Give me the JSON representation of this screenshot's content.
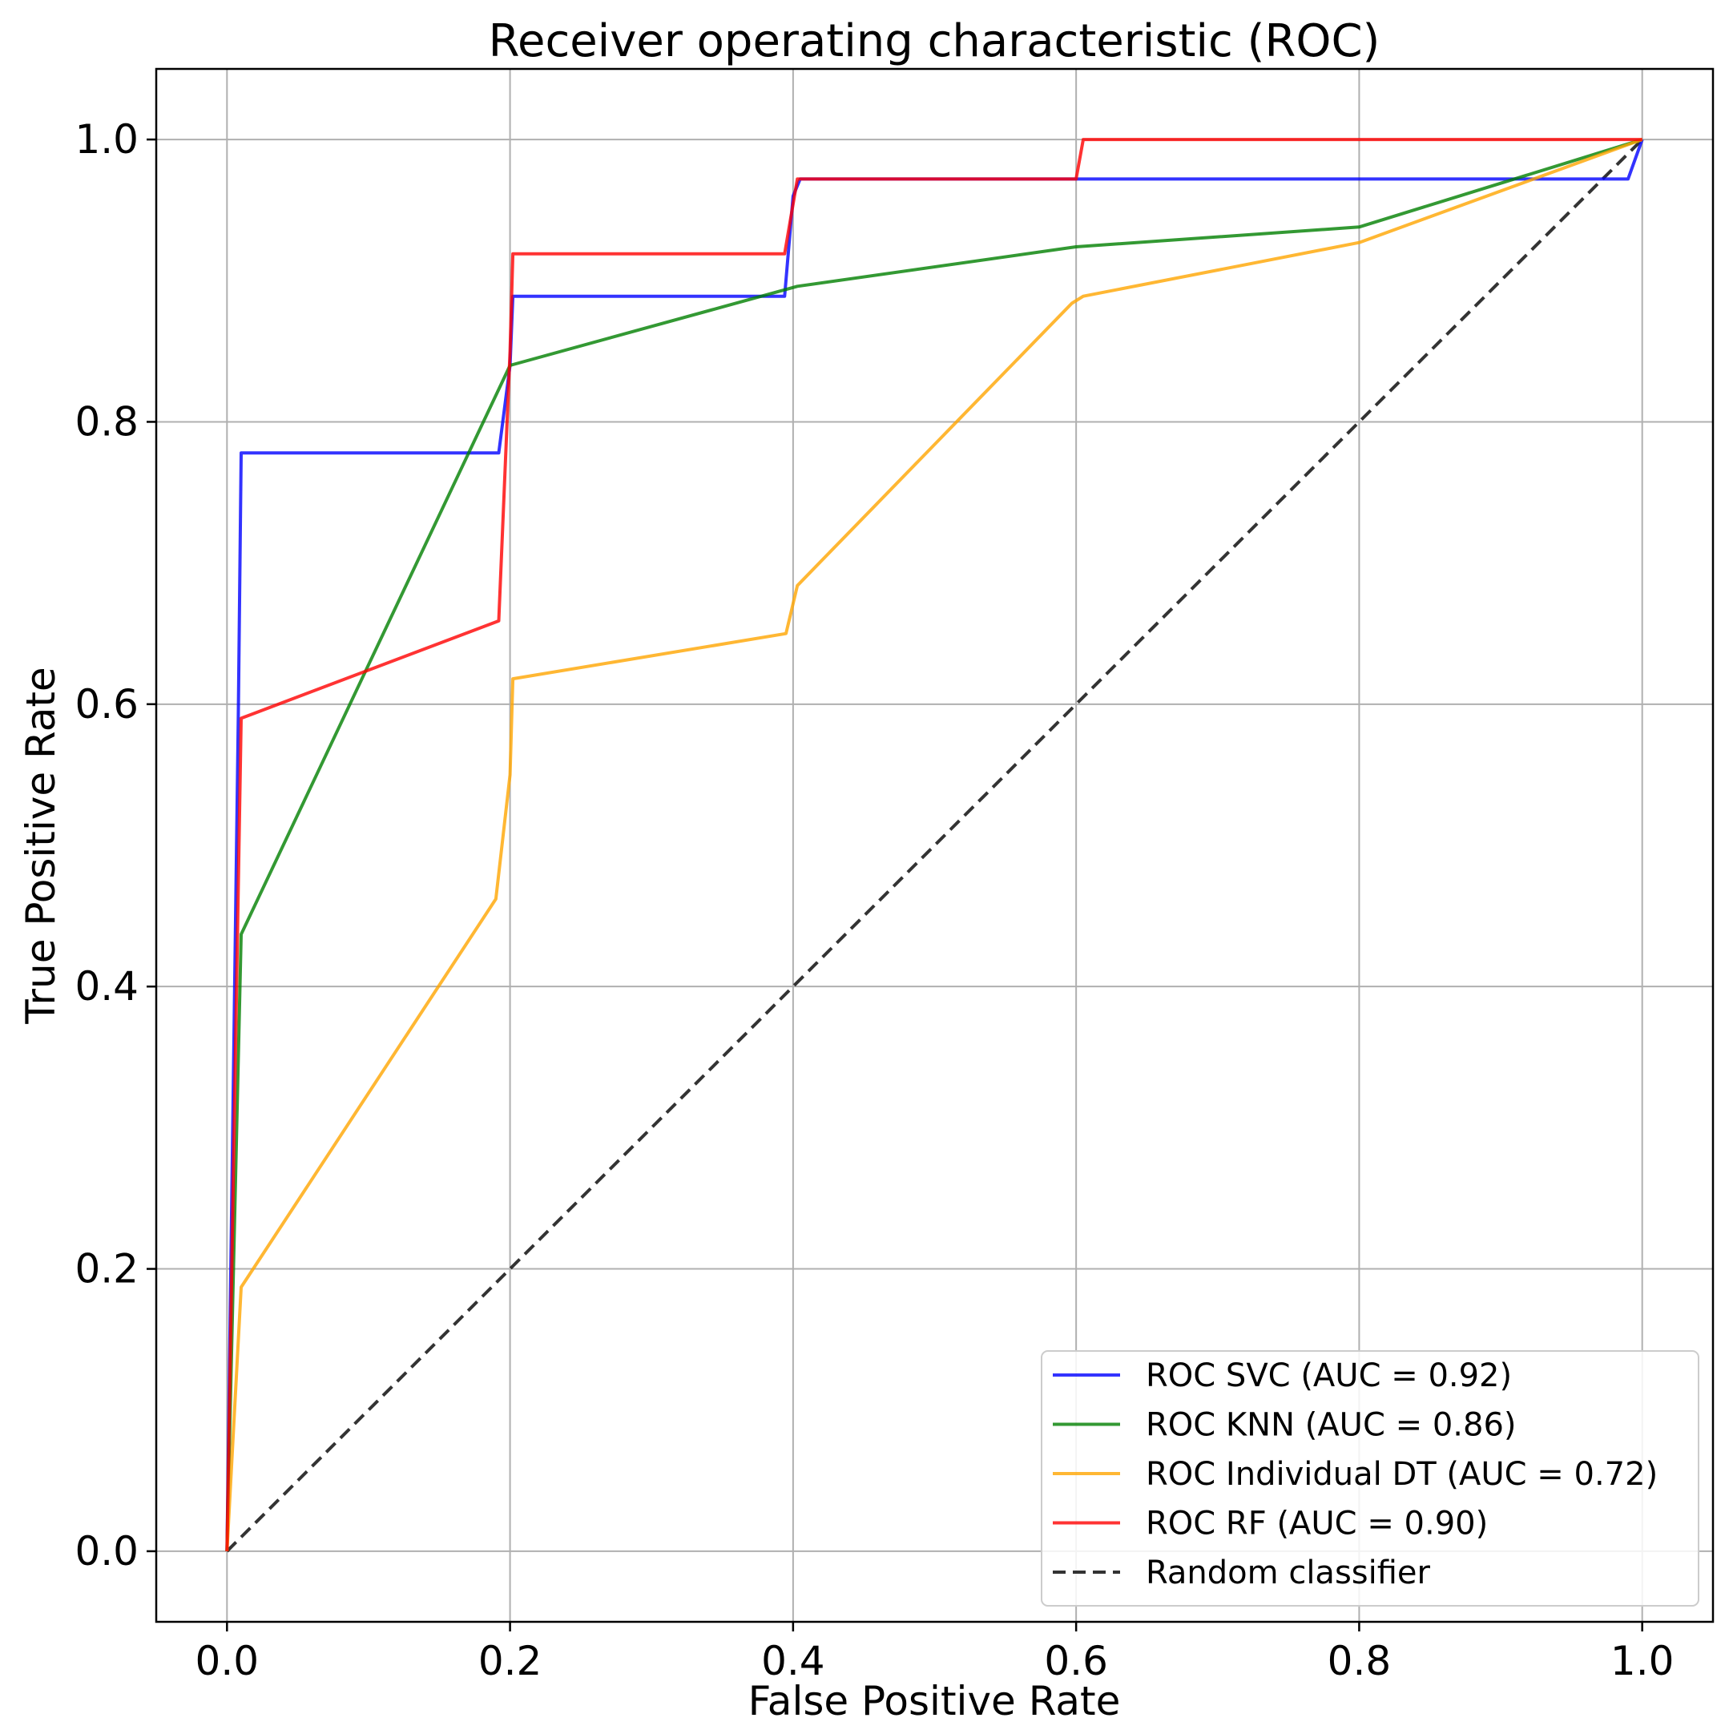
{
  "chart_data": {
    "type": "line",
    "title": "Receiver operating characteristic (ROC)",
    "xlabel": "False Positive Rate",
    "ylabel": "True Positive Rate",
    "xlim": [
      -0.05,
      1.05
    ],
    "ylim": [
      -0.05,
      1.05
    ],
    "grid": true,
    "legend_position": "lower-right",
    "x_ticks": [
      {
        "value": 0.0,
        "label": "0.0"
      },
      {
        "value": 0.2,
        "label": "0.2"
      },
      {
        "value": 0.4,
        "label": "0.4"
      },
      {
        "value": 0.6,
        "label": "0.6"
      },
      {
        "value": 0.8,
        "label": "0.8"
      },
      {
        "value": 1.0,
        "label": "1.0"
      }
    ],
    "y_ticks": [
      {
        "value": 0.0,
        "label": "0.0"
      },
      {
        "value": 0.2,
        "label": "0.2"
      },
      {
        "value": 0.4,
        "label": "0.4"
      },
      {
        "value": 0.6,
        "label": "0.6"
      },
      {
        "value": 0.8,
        "label": "0.8"
      },
      {
        "value": 1.0,
        "label": "1.0"
      }
    ],
    "series": [
      {
        "name": "ROC SVC (AUC = 0.92)",
        "color": "#0000ff",
        "dashed": false,
        "x": [
          0.0,
          0.008,
          0.01,
          0.192,
          0.2,
          0.202,
          0.394,
          0.4,
          0.405,
          0.99,
          1.0
        ],
        "y": [
          0.0,
          0.59,
          0.778,
          0.778,
          0.84,
          0.889,
          0.889,
          0.96,
          0.972,
          0.972,
          1.0
        ]
      },
      {
        "name": "ROC KNN (AUC = 0.86)",
        "color": "#008000",
        "dashed": false,
        "x": [
          0.0,
          0.01,
          0.2,
          0.403,
          0.6,
          0.8,
          1.0
        ],
        "y": [
          0.0,
          0.437,
          0.84,
          0.896,
          0.924,
          0.938,
          1.0
        ]
      },
      {
        "name": "ROC Individual DT (AUC = 0.72)",
        "color": "#ffa500",
        "dashed": false,
        "x": [
          0.0,
          0.01,
          0.19,
          0.2,
          0.202,
          0.395,
          0.403,
          0.597,
          0.605,
          0.8,
          1.0
        ],
        "y": [
          0.0,
          0.187,
          0.462,
          0.55,
          0.618,
          0.65,
          0.684,
          0.884,
          0.889,
          0.927,
          1.0
        ]
      },
      {
        "name": "ROC RF (AUC = 0.90)",
        "color": "#ff0000",
        "dashed": false,
        "x": [
          0.0,
          0.01,
          0.192,
          0.2,
          0.202,
          0.394,
          0.403,
          0.6,
          0.605,
          1.0
        ],
        "y": [
          0.0,
          0.59,
          0.659,
          0.85,
          0.919,
          0.919,
          0.972,
          0.972,
          1.0,
          1.0
        ]
      },
      {
        "name": "Random classifier",
        "color": "#000000",
        "dashed": true,
        "x": [
          0.0,
          1.0
        ],
        "y": [
          0.0,
          1.0
        ]
      }
    ]
  }
}
